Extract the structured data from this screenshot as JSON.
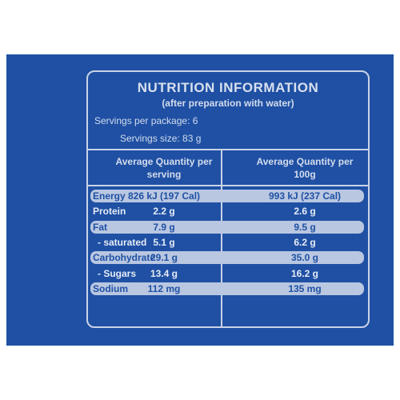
{
  "header": {
    "title": "NUTRITION INFORMATION",
    "subtitle": "(after preparation with water)",
    "servings_per_package": "Servings per package: 6",
    "serving_size": "Servings size: 83 g"
  },
  "table": {
    "columns": [
      "Average Quantity per serving",
      "Average Quantity per 100g"
    ],
    "rows": [
      [
        "Energy",
        "826 kJ (197 Cal)",
        "993 kJ (237 Cal)"
      ],
      [
        "Protein",
        "2.2 g",
        "2.6 g"
      ],
      [
        "Fat",
        "7.9 g",
        "9.5 g"
      ],
      [
        "- saturated",
        "5.1 g",
        "6.2 g"
      ],
      [
        "Carbohydrate",
        "29.1 g",
        "35.0 g"
      ],
      [
        "- Sugars",
        "13.4 g",
        "16.2 g"
      ],
      [
        "Sodium",
        "112 mg",
        "135 mg"
      ]
    ]
  }
}
